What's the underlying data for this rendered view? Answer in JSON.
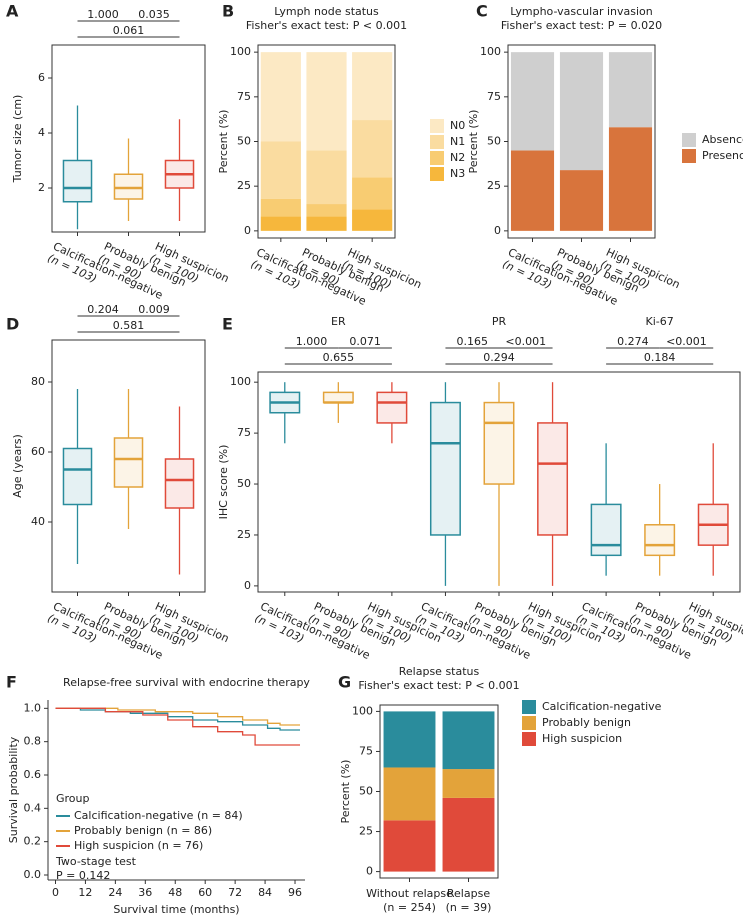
{
  "chart_data": [
    {
      "type": "box",
      "panel": "A",
      "ylabel": "Tumor size (cm)",
      "categories": [
        "Calcification-negative",
        "Probably benign",
        "High suspicion"
      ],
      "sublabels": [
        "(n = 103)",
        "(n = 90)",
        "(n = 100)"
      ],
      "colors": [
        "#2a8c9c",
        "#e3a33a",
        "#e04a3a"
      ],
      "ylim": [
        0.4,
        7.2
      ],
      "yticks": [
        2,
        4,
        6
      ],
      "boxes": [
        {
          "min": 0.5,
          "q1": 1.5,
          "median": 2.0,
          "q3": 3.0,
          "max": 5.0
        },
        {
          "min": 0.8,
          "q1": 1.6,
          "median": 2.0,
          "q3": 2.5,
          "max": 3.8
        },
        {
          "min": 0.8,
          "q1": 2.0,
          "median": 2.5,
          "q3": 3.0,
          "max": 4.5
        }
      ],
      "comparisons": [
        {
          "groups": [
            0,
            1
          ],
          "label": "1.000"
        },
        {
          "groups": [
            1,
            2
          ],
          "label": "0.035"
        },
        {
          "groups": [
            0,
            2
          ],
          "label": "0.061"
        }
      ]
    },
    {
      "type": "stacked_bar",
      "panel": "B",
      "title": "Lymph node status",
      "subtitle": "Fisher's exact test: P < 0.001",
      "ylabel": "Percent (%)",
      "categories": [
        "Calcification-negative",
        "Probably benign",
        "High suspicion"
      ],
      "sublabels": [
        "(n = 103)",
        "(n = 90)",
        "(n = 100)"
      ],
      "ylim": [
        -4,
        104
      ],
      "yticks": [
        0,
        25,
        50,
        75,
        100
      ],
      "series": [
        {
          "name": "N0",
          "color": "#fce9c4",
          "values": [
            50,
            55,
            38
          ]
        },
        {
          "name": "N1",
          "color": "#fadca0",
          "values": [
            32,
            30,
            32
          ]
        },
        {
          "name": "N2",
          "color": "#f8cc72",
          "values": [
            10,
            7,
            18
          ]
        },
        {
          "name": "N3",
          "color": "#f6b73c",
          "values": [
            8,
            8,
            12
          ]
        }
      ]
    },
    {
      "type": "stacked_bar",
      "panel": "C",
      "title": "Lympho-vascular invasion",
      "subtitle": "Fisher's exact test: P = 0.020",
      "ylabel": "Percent (%)",
      "categories": [
        "Calcification-negative",
        "Probably benign",
        "High suspicion"
      ],
      "sublabels": [
        "(n = 103)",
        "(n = 90)",
        "(n = 100)"
      ],
      "ylim": [
        -4,
        104
      ],
      "yticks": [
        0,
        25,
        50,
        75,
        100
      ],
      "series": [
        {
          "name": "Absence",
          "color": "#cfcfcf",
          "values": [
            55,
            66,
            42
          ]
        },
        {
          "name": "Presence",
          "color": "#d8743c",
          "values": [
            45,
            34,
            58
          ]
        }
      ]
    },
    {
      "type": "box",
      "panel": "D",
      "ylabel": "Age (years)",
      "categories": [
        "Calcification-negative",
        "Probably benign",
        "High suspicion"
      ],
      "sublabels": [
        "(n = 103)",
        "(n = 90)",
        "(n = 100)"
      ],
      "colors": [
        "#2a8c9c",
        "#e3a33a",
        "#e04a3a"
      ],
      "ylim": [
        20,
        92
      ],
      "yticks": [
        40,
        60,
        80
      ],
      "boxes": [
        {
          "min": 28,
          "q1": 45,
          "median": 55,
          "q3": 61,
          "max": 78
        },
        {
          "min": 38,
          "q1": 50,
          "median": 58,
          "q3": 64,
          "max": 78
        },
        {
          "min": 25,
          "q1": 44,
          "median": 52,
          "q3": 58,
          "max": 73
        }
      ],
      "comparisons": [
        {
          "groups": [
            0,
            1
          ],
          "label": "0.204"
        },
        {
          "groups": [
            1,
            2
          ],
          "label": "0.009"
        },
        {
          "groups": [
            0,
            2
          ],
          "label": "0.581"
        }
      ]
    },
    {
      "type": "grouped_box",
      "panel": "E",
      "ylabel": "IHC score (%)",
      "categories": [
        "Calcification-negative",
        "Probably benign",
        "High suspicion"
      ],
      "sublabels": [
        "(n = 103)",
        "(n = 90)",
        "(n = 100)"
      ],
      "colors": [
        "#2a8c9c",
        "#e3a33a",
        "#e04a3a"
      ],
      "ylim": [
        -3,
        105
      ],
      "yticks": [
        0,
        25,
        50,
        75,
        100
      ],
      "groups": [
        {
          "title": "ER",
          "boxes": [
            {
              "min": 70,
              "q1": 85,
              "median": 90,
              "q3": 95,
              "max": 100
            },
            {
              "min": 80,
              "q1": 90,
              "median": 90,
              "q3": 95,
              "max": 100
            },
            {
              "min": 70,
              "q1": 80,
              "median": 90,
              "q3": 95,
              "max": 100
            }
          ],
          "comparisons": [
            {
              "groups": [
                0,
                1
              ],
              "label": "1.000"
            },
            {
              "groups": [
                1,
                2
              ],
              "label": "0.071"
            },
            {
              "groups": [
                0,
                2
              ],
              "label": "0.655"
            }
          ]
        },
        {
          "title": "PR",
          "boxes": [
            {
              "min": 0,
              "q1": 25,
              "median": 70,
              "q3": 90,
              "max": 100
            },
            {
              "min": 0,
              "q1": 50,
              "median": 80,
              "q3": 90,
              "max": 100
            },
            {
              "min": 0,
              "q1": 25,
              "median": 60,
              "q3": 80,
              "max": 100
            }
          ],
          "comparisons": [
            {
              "groups": [
                0,
                1
              ],
              "label": "0.165"
            },
            {
              "groups": [
                1,
                2
              ],
              "label": "<0.001"
            },
            {
              "groups": [
                0,
                2
              ],
              "label": "0.294"
            }
          ]
        },
        {
          "title": "Ki-67",
          "boxes": [
            {
              "min": 5,
              "q1": 15,
              "median": 20,
              "q3": 40,
              "max": 70
            },
            {
              "min": 5,
              "q1": 15,
              "median": 20,
              "q3": 30,
              "max": 50
            },
            {
              "min": 5,
              "q1": 20,
              "median": 30,
              "q3": 40,
              "max": 70
            }
          ],
          "comparisons": [
            {
              "groups": [
                0,
                1
              ],
              "label": "0.274"
            },
            {
              "groups": [
                1,
                2
              ],
              "label": "<0.001"
            },
            {
              "groups": [
                0,
                2
              ],
              "label": "0.184"
            }
          ]
        }
      ]
    },
    {
      "type": "line",
      "panel": "F",
      "title": "Relapse-free survival with endocrine therapy",
      "xlabel": "Survival time (months)",
      "ylabel": "Survival probability",
      "xlim": [
        -3,
        100
      ],
      "ylim": [
        -0.03,
        1.05
      ],
      "xticks": [
        0,
        12,
        24,
        36,
        48,
        60,
        72,
        84,
        96
      ],
      "yticks": [
        {
          "value": 0,
          "label": "0.0"
        },
        0.2,
        0.4,
        0.6,
        0.8,
        {
          "value": 1,
          "label": "1.0"
        }
      ],
      "legend_title": "Group",
      "series": [
        {
          "name": "Calcification-negative (n = 84)",
          "color": "#2a8c9c",
          "x": [
            0,
            10,
            20,
            30,
            45,
            55,
            65,
            75,
            85,
            90,
            98
          ],
          "values": [
            1,
            0.99,
            0.98,
            0.97,
            0.95,
            0.93,
            0.92,
            0.9,
            0.88,
            0.87,
            0.87
          ]
        },
        {
          "name": "Probably benign (n = 86)",
          "color": "#e3a33a",
          "x": [
            0,
            25,
            40,
            55,
            65,
            75,
            85,
            90,
            98
          ],
          "values": [
            1,
            0.99,
            0.98,
            0.97,
            0.95,
            0.93,
            0.91,
            0.9,
            0.9
          ]
        },
        {
          "name": "High suspicion (n = 76)",
          "color": "#e04a3a",
          "x": [
            0,
            20,
            35,
            45,
            55,
            65,
            75,
            80,
            98
          ],
          "values": [
            1,
            0.98,
            0.96,
            0.93,
            0.89,
            0.86,
            0.84,
            0.78,
            0.78
          ]
        }
      ],
      "annotations": [
        "Two-stage test",
        "P = 0.142"
      ]
    },
    {
      "type": "stacked_bar",
      "panel": "G",
      "title": "Relapse status",
      "subtitle": "Fisher's exact test: P < 0.001",
      "ylabel": "Percent (%)",
      "categories": [
        "Without relapse",
        "Relapse"
      ],
      "sublabels": [
        "(n = 254)",
        "(n = 39)"
      ],
      "ylim": [
        -4,
        104
      ],
      "yticks": [
        0,
        25,
        50,
        75,
        100
      ],
      "series": [
        {
          "name": "Calcification-negative",
          "color": "#2a8c9c",
          "values": [
            35,
            36
          ]
        },
        {
          "name": "Probably benign",
          "color": "#e3a33a",
          "values": [
            33,
            18
          ]
        },
        {
          "name": "High suspicion",
          "color": "#e04a3a",
          "values": [
            32,
            46
          ]
        }
      ]
    }
  ]
}
